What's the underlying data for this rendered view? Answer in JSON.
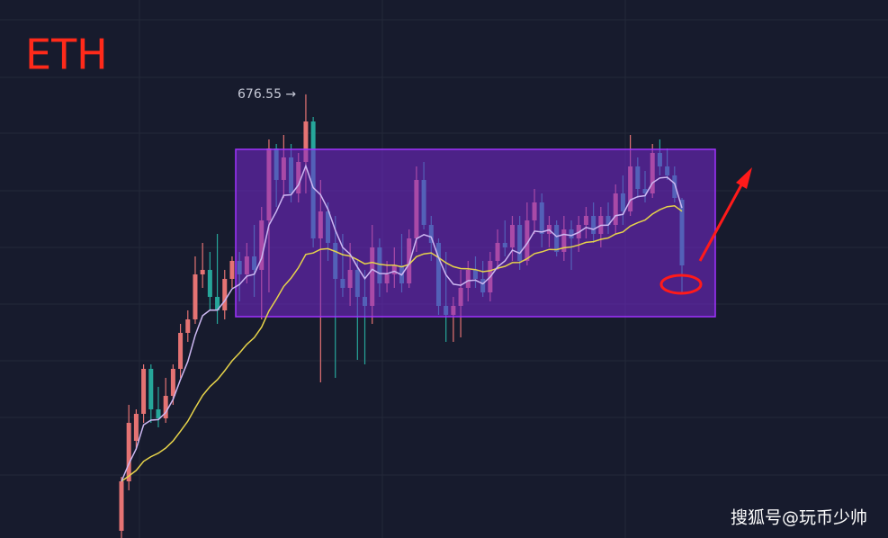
{
  "chart_data": {
    "type": "candlestick",
    "title": "ETH",
    "annotation": "676.55 →",
    "watermark": "搜狐号@玩币少帅",
    "up_color": "#e57373",
    "down_color": "#26a69a",
    "ylim": [
      430,
      729
    ],
    "ohlc": [
      [
        434,
        464,
        430,
        461.5
      ],
      [
        461.5,
        504,
        456.5,
        494
      ],
      [
        484,
        501.5,
        479,
        499
      ],
      [
        499,
        526.5,
        494,
        524
      ],
      [
        524,
        526.5,
        494,
        501.5
      ],
      [
        501.5,
        514,
        491.5,
        496.5
      ],
      [
        496.5,
        519,
        494,
        509
      ],
      [
        509,
        526.5,
        504,
        524
      ],
      [
        524,
        549,
        519,
        544
      ],
      [
        544,
        556.5,
        539,
        551.5
      ],
      [
        551.5,
        586.5,
        549,
        576.5
      ],
      [
        576.5,
        594,
        569,
        579
      ],
      [
        579,
        589,
        556.5,
        564
      ],
      [
        564,
        599,
        549,
        556.5
      ],
      [
        556.5,
        579,
        551.5,
        574
      ],
      [
        574,
        586.5,
        569,
        584
      ],
      [
        584,
        589,
        561.5,
        576.5
      ],
      [
        576.5,
        594,
        571.5,
        586.5
      ],
      [
        586.5,
        604,
        564,
        579
      ],
      [
        579,
        614,
        551.5,
        606.5
      ],
      [
        606.5,
        651.5,
        566.5,
        646.5
      ],
      [
        646.5,
        649,
        614,
        629
      ],
      [
        629,
        654,
        619,
        641.5
      ],
      [
        641.5,
        649,
        616.5,
        621.5
      ],
      [
        621.5,
        644,
        616.5,
        639
      ],
      [
        639,
        676.55,
        621.5,
        661.5
      ],
      [
        661.5,
        664,
        591.5,
        596.5
      ],
      [
        596.5,
        629,
        516.5,
        611.5
      ],
      [
        611.5,
        616.5,
        584,
        594
      ],
      [
        594,
        609,
        519,
        574
      ],
      [
        574,
        599,
        564,
        569
      ],
      [
        569,
        594,
        559,
        579
      ],
      [
        579,
        584,
        529,
        564
      ],
      [
        564,
        579,
        526.5,
        559
      ],
      [
        559,
        604,
        549,
        591.5
      ],
      [
        591.5,
        596.5,
        564,
        571.5
      ],
      [
        571.5,
        584,
        566.5,
        576.5
      ],
      [
        576.5,
        591.5,
        569,
        581.5
      ],
      [
        581.5,
        599,
        566.5,
        571.5
      ],
      [
        571.5,
        601.5,
        569,
        596.5
      ],
      [
        596.5,
        636.5,
        589,
        629
      ],
      [
        629,
        639,
        601.5,
        604
      ],
      [
        604,
        609,
        584,
        594
      ],
      [
        594,
        596.5,
        554,
        559
      ],
      [
        559,
        589,
        539,
        554
      ],
      [
        554,
        564,
        539,
        559
      ],
      [
        559,
        579,
        541.5,
        569
      ],
      [
        569,
        584,
        561.5,
        579
      ],
      [
        579,
        586.5,
        569,
        574
      ],
      [
        574,
        584,
        564,
        566.5
      ],
      [
        566.5,
        589,
        561.5,
        584
      ],
      [
        584,
        601.5,
        579,
        594
      ],
      [
        594,
        606.5,
        586.5,
        591.5
      ],
      [
        591.5,
        609,
        584,
        604
      ],
      [
        604,
        609,
        579,
        584
      ],
      [
        584,
        616.5,
        581.5,
        606.5
      ],
      [
        606.5,
        624,
        599,
        616.5
      ],
      [
        616.5,
        621.5,
        591.5,
        599
      ],
      [
        599,
        609,
        591.5,
        604
      ],
      [
        604,
        606.5,
        586.5,
        589
      ],
      [
        589,
        609,
        584,
        601.5
      ],
      [
        601.5,
        606.5,
        579,
        596.5
      ],
      [
        596.5,
        609,
        589,
        604
      ],
      [
        604,
        614,
        596.5,
        609
      ],
      [
        609,
        616.5,
        594,
        599
      ],
      [
        599,
        614,
        591.5,
        609
      ],
      [
        609,
        616.5,
        599,
        604
      ],
      [
        604,
        626.5,
        599,
        621.5
      ],
      [
        621.5,
        631.5,
        604,
        611.5
      ],
      [
        611.5,
        654,
        609,
        636.5
      ],
      [
        636.5,
        641.5,
        619,
        624
      ],
      [
        624,
        634,
        616.5,
        621.5
      ],
      [
        621.5,
        649,
        619,
        644
      ],
      [
        644,
        651.5,
        631.5,
        636.5
      ],
      [
        636.5,
        646.5,
        629,
        631.5
      ],
      [
        631.5,
        636.5,
        616.5,
        619
      ],
      [
        618,
        619,
        566.5,
        581.5
      ]
    ]
  }
}
